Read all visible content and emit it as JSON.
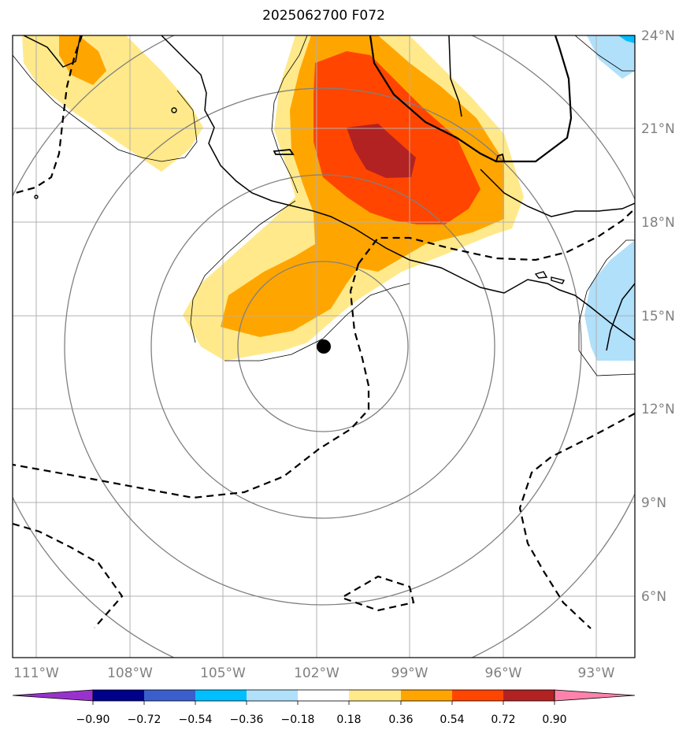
{
  "title": "2025062700 F072",
  "map": {
    "lon_range": [
      -111.5,
      -91.5
    ],
    "lat_range": [
      4,
      24
    ],
    "lat_ticks": [
      "24°N",
      "21°N",
      "18°N",
      "15°N",
      "12°N",
      "9°N",
      "6°N"
    ],
    "lon_ticks": [
      "111°W",
      "108°W",
      "105°W",
      "102°W",
      "99°W",
      "96°W",
      "93°W"
    ],
    "center_marker": {
      "lon": -101.8,
      "lat": 14.0
    },
    "range_rings_deg": [
      2.7,
      5.5,
      8.3,
      11.0
    ],
    "colors": {
      "lightyellow": "#ffe98a",
      "orange": "#ffa500",
      "redorange": "#ff4500",
      "darkred": "#b22222",
      "lightblue": "#b0e0fa",
      "deepskyblue": "#00bfff",
      "grid": "#b0b0b0",
      "ring": "#808080"
    }
  },
  "colorbar": {
    "ticks": [
      "−0.90",
      "−0.72",
      "−0.54",
      "−0.36",
      "−0.18",
      "0.18",
      "0.36",
      "0.54",
      "0.72",
      "0.90"
    ],
    "colors": [
      "#9932cc",
      "#00008b",
      "#3a5fcd",
      "#00bfff",
      "#b0e0fa",
      "#ffffff",
      "#ffe98a",
      "#ffa500",
      "#ff4500",
      "#b22222",
      "#ff82ab"
    ]
  }
}
